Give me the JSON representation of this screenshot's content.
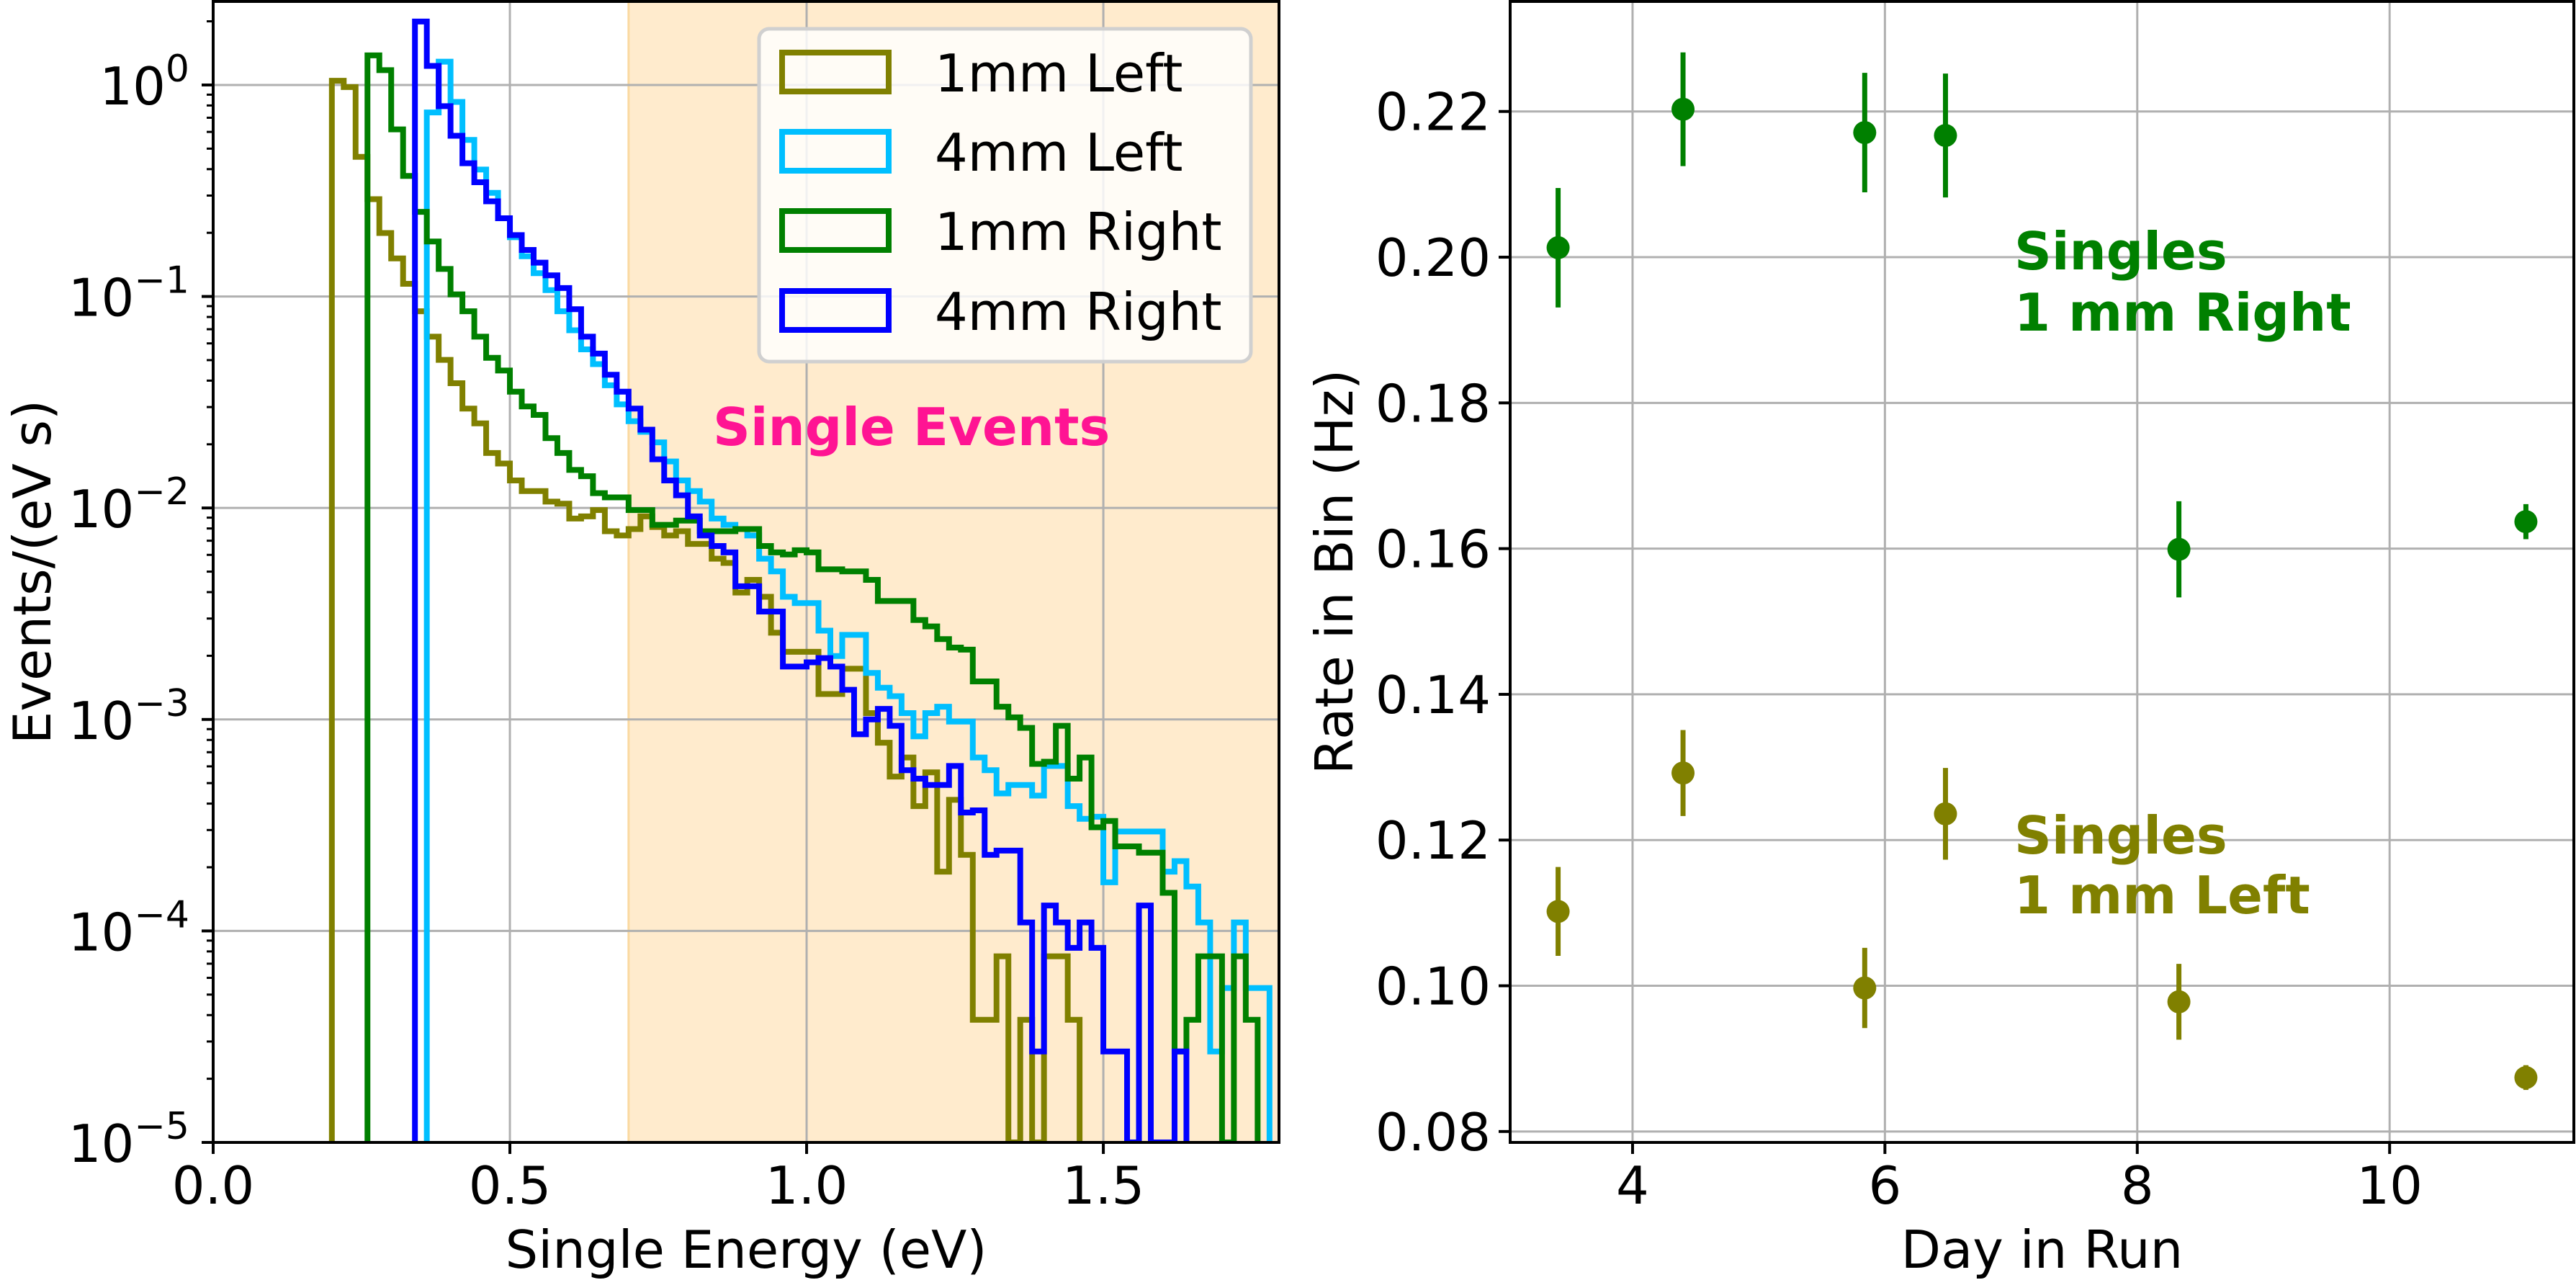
{
  "chart_data": [
    {
      "type": "histogram",
      "title": "",
      "xlabel": "Single Energy (eV)",
      "ylabel": "Events/(eV s)",
      "xlim": [
        0,
        1.796
      ],
      "yscale": "log",
      "ylim_log10": [
        -5,
        0.395
      ],
      "grid": true,
      "xticks": [
        {
          "value": 0.0,
          "label": "0.0"
        },
        {
          "value": 0.5,
          "label": "0.5"
        },
        {
          "value": 1.0,
          "label": "1.0"
        },
        {
          "value": 1.5,
          "label": "1.5"
        }
      ],
      "yticks": [
        {
          "log10": 0,
          "base": "10",
          "exp": "0"
        },
        {
          "log10": -1,
          "base": "10",
          "exp": "−1"
        },
        {
          "log10": -2,
          "base": "10",
          "exp": "−2"
        },
        {
          "log10": -3,
          "base": "10",
          "exp": "−3"
        },
        {
          "log10": -4,
          "base": "10",
          "exp": "−4"
        },
        {
          "log10": -5,
          "base": "10",
          "exp": "−5"
        }
      ],
      "shaded_region": {
        "from": 0.7,
        "to": 1.8,
        "color": "#FFEBCD"
      },
      "annotation": {
        "text": "Single Events",
        "color": "#FF1493"
      },
      "legend": {
        "placement": "top-right"
      },
      "bin_width": 0.02,
      "series": [
        {
          "name": "1mm Left",
          "color": "#808000",
          "start": 0.2,
          "log10_values": [
            0.02,
            -0.01,
            -0.34,
            -0.54,
            -0.7,
            -0.82,
            -0.94,
            -1.07,
            -1.19,
            -1.3,
            -1.41,
            -1.53,
            -1.6,
            -1.74,
            -1.79,
            -1.87,
            -1.92,
            -1.92,
            -1.97,
            -1.98,
            -2.05,
            -2.04,
            -2.01,
            -2.11,
            -2.13,
            -2.1,
            -2.04,
            -2.09,
            -2.13,
            -2.11,
            -2.17,
            -2.17,
            -2.24,
            -2.26,
            -2.4,
            -2.34,
            -2.42,
            -2.59,
            -2.68,
            -2.68,
            -2.68,
            -2.88,
            -2.88,
            -2.76,
            -2.76,
            -2.97,
            -3.11,
            -3.27,
            -3.18,
            -3.41,
            -3.25,
            -3.72,
            -3.38,
            -3.64,
            -4.42,
            -4.42,
            -4.12,
            null,
            -4.42,
            null,
            -4.12,
            -4.12,
            -4.42
          ]
        },
        {
          "name": "4mm Left",
          "color": "#00BFFF",
          "start": 0.36,
          "log10_values": [
            -0.13,
            0.11,
            -0.08,
            -0.26,
            -0.4,
            -0.51,
            -0.63,
            -0.72,
            -0.81,
            -0.89,
            -0.97,
            -1.07,
            -1.16,
            -1.25,
            -1.32,
            -1.42,
            -1.51,
            -1.59,
            -1.64,
            -1.69,
            -1.78,
            -1.87,
            -1.92,
            -1.97,
            -2.05,
            -2.08,
            -2.1,
            -2.13,
            -2.24,
            -2.3,
            -2.42,
            -2.45,
            -2.45,
            -2.58,
            -2.7,
            -2.6,
            -2.6,
            -2.78,
            -2.85,
            -2.89,
            -2.97,
            -3.08,
            -2.97,
            -2.94,
            -3.01,
            -3.01,
            -3.18,
            -3.24,
            -3.35,
            -3.31,
            -3.31,
            -3.36,
            -3.22,
            -3.22,
            -3.41,
            -3.47,
            -3.46,
            -3.77,
            -3.53,
            -3.53,
            -3.53,
            -3.53,
            -3.72,
            -3.67,
            -3.79,
            -3.96,
            -4.57,
            -4.27,
            -3.96,
            -4.27,
            -4.27
          ]
        },
        {
          "name": "1mm Right",
          "color": "#008000",
          "start": 0.26,
          "log10_values": [
            0.14,
            0.07,
            -0.21,
            -0.43,
            -0.6,
            -0.74,
            -0.87,
            -0.99,
            -1.07,
            -1.19,
            -1.29,
            -1.35,
            -1.45,
            -1.52,
            -1.56,
            -1.67,
            -1.74,
            -1.82,
            -1.85,
            -1.93,
            -1.95,
            -1.95,
            -2.01,
            -2.01,
            -2.08,
            -2.08,
            -2.06,
            -2.06,
            -2.11,
            -2.11,
            -2.11,
            -2.1,
            -2.1,
            -2.18,
            -2.21,
            -2.22,
            -2.2,
            -2.21,
            -2.29,
            -2.29,
            -2.3,
            -2.3,
            -2.34,
            -2.44,
            -2.44,
            -2.44,
            -2.53,
            -2.56,
            -2.62,
            -2.66,
            -2.67,
            -2.82,
            -2.82,
            -2.94,
            -2.99,
            -3.04,
            -3.21,
            -3.2,
            -3.03,
            -3.28,
            -3.18,
            -3.51,
            -3.48,
            -3.6,
            -3.6,
            -3.63,
            -3.63,
            -3.82,
            -4.57,
            -4.42,
            -4.12,
            -4.12,
            null,
            -4.12,
            -4.42
          ]
        },
        {
          "name": "4mm Right",
          "color": "#0000FF",
          "start": 0.34,
          "log10_values": [
            0.3,
            0.09,
            -0.1,
            -0.24,
            -0.37,
            -0.46,
            -0.55,
            -0.63,
            -0.71,
            -0.78,
            -0.84,
            -0.9,
            -0.96,
            -1.06,
            -1.19,
            -1.27,
            -1.37,
            -1.45,
            -1.53,
            -1.63,
            -1.77,
            -1.87,
            -1.94,
            -2.04,
            -2.13,
            -2.18,
            -2.21,
            -2.37,
            -2.37,
            -2.49,
            -2.49,
            -2.75,
            -2.75,
            -2.73,
            -2.71,
            -2.75,
            -2.86,
            -3.07,
            -3.0,
            -2.95,
            -3.03,
            -3.24,
            -3.28,
            -3.31,
            -3.31,
            -3.22,
            -3.44,
            -3.43,
            -3.64,
            -3.62,
            -3.62,
            -3.96,
            -4.57,
            -3.88,
            -3.96,
            -4.08,
            -3.96,
            -4.08,
            -4.57,
            -4.57,
            null,
            -3.88,
            null,
            null,
            -4.57
          ]
        }
      ]
    },
    {
      "type": "scatter",
      "title": "",
      "xlabel": "Day in Run",
      "ylabel": "Rate in Bin (Hz)",
      "xlim": [
        3.03,
        11.46
      ],
      "ylim": [
        0.0785,
        0.2351
      ],
      "grid": true,
      "xticks": [
        {
          "value": 4,
          "label": "4"
        },
        {
          "value": 6,
          "label": "6"
        },
        {
          "value": 8,
          "label": "8"
        },
        {
          "value": 10,
          "label": "10"
        }
      ],
      "yticks": [
        {
          "value": 0.08,
          "label": "0.08"
        },
        {
          "value": 0.1,
          "label": "0.10"
        },
        {
          "value": 0.12,
          "label": "0.12"
        },
        {
          "value": 0.14,
          "label": "0.14"
        },
        {
          "value": 0.16,
          "label": "0.16"
        },
        {
          "value": 0.18,
          "label": "0.18"
        },
        {
          "value": 0.2,
          "label": "0.20"
        },
        {
          "value": 0.22,
          "label": "0.22"
        }
      ],
      "series": [
        {
          "name": "Singles 1 mm Right",
          "label_lines": [
            "Singles",
            "1 mm Right"
          ],
          "color": "#008000",
          "x": [
            3.41,
            4.4,
            5.84,
            6.48,
            8.33,
            11.08
          ],
          "y": [
            0.2013,
            0.2203,
            0.2171,
            0.2167,
            0.1599,
            0.1637
          ],
          "yerr": [
            0.0082,
            0.0078,
            0.0082,
            0.0085,
            0.0066,
            0.0024
          ]
        },
        {
          "name": "Singles 1 mm Left",
          "label_lines": [
            "Singles",
            "1 mm Left"
          ],
          "color": "#808000",
          "x": [
            3.41,
            4.4,
            5.84,
            6.48,
            8.33,
            11.08
          ],
          "y": [
            0.1102,
            0.1292,
            0.0997,
            0.1236,
            0.0978,
            0.0874
          ],
          "yerr": [
            0.0061,
            0.0059,
            0.0055,
            0.0063,
            0.0052,
            0.0017
          ]
        }
      ]
    }
  ]
}
